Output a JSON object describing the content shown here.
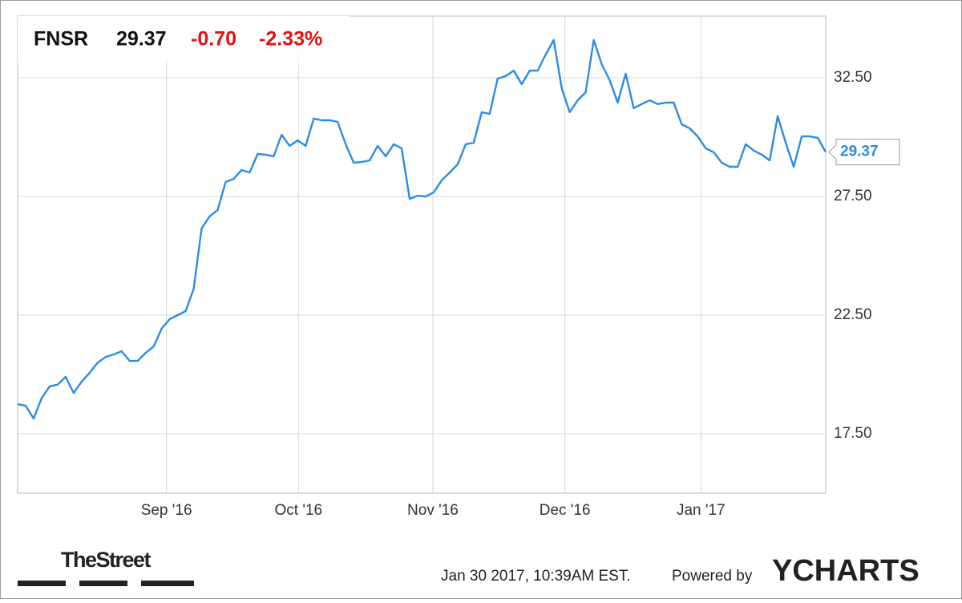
{
  "chart_data": {
    "type": "line",
    "ticker": "FNSR",
    "price": "29.37",
    "change": "-0.70",
    "change_percent": "-2.33%",
    "series": [
      {
        "name": "FNSR",
        "color": "#2b8ce6",
        "values": [
          18.75,
          18.68,
          18.14,
          19.0,
          19.5,
          19.57,
          19.9,
          19.22,
          19.7,
          20.07,
          20.5,
          20.74,
          20.84,
          20.98,
          20.57,
          20.57,
          20.91,
          21.18,
          21.93,
          22.33,
          22.5,
          22.67,
          23.61,
          26.15,
          26.66,
          26.93,
          28.11,
          28.24,
          28.61,
          28.51,
          29.29,
          29.26,
          29.19,
          30.1,
          29.63,
          29.86,
          29.63,
          30.78,
          30.71,
          30.71,
          30.64,
          29.7,
          28.92,
          28.95,
          29.02,
          29.63,
          29.19,
          29.7,
          29.53,
          27.4,
          27.53,
          27.5,
          27.67,
          28.18,
          28.51,
          28.85,
          29.7,
          29.76,
          31.05,
          30.98,
          32.47,
          32.57,
          32.8,
          32.23,
          32.8,
          32.8,
          33.48,
          34.09,
          32.06,
          31.05,
          31.55,
          31.89,
          34.09,
          33.07,
          32.4,
          31.45,
          32.67,
          31.22,
          31.39,
          31.55,
          31.39,
          31.45,
          31.45,
          30.54,
          30.37,
          30.03,
          29.53,
          29.36,
          28.92,
          28.75,
          28.75,
          29.7,
          29.43,
          29.26,
          29.02,
          30.88,
          29.76,
          28.75,
          30.03,
          30.03,
          29.97,
          29.37
        ]
      }
    ],
    "ylim": [
      15,
      35.1
    ],
    "yticks": [
      {
        "value": 17.5,
        "label": "17.50"
      },
      {
        "value": 22.5,
        "label": "22.50"
      },
      {
        "value": 27.5,
        "label": "27.50"
      },
      {
        "value": 32.5,
        "label": "32.50"
      }
    ],
    "xlim": [
      0,
      101
    ],
    "xticks": [
      {
        "value": 18.6,
        "label": "Sep '16"
      },
      {
        "value": 35.1,
        "label": "Oct '16"
      },
      {
        "value": 51.9,
        "label": "Nov '16"
      },
      {
        "value": 68.4,
        "label": "Dec '16"
      },
      {
        "value": 85.4,
        "label": "Jan '17"
      }
    ],
    "grid": true
  },
  "footer": {
    "brand": "TheStreet",
    "timestamp": "Jan 30 2017, 10:39AM EST.",
    "powered": "Powered by",
    "logo": "YCHARTS"
  }
}
